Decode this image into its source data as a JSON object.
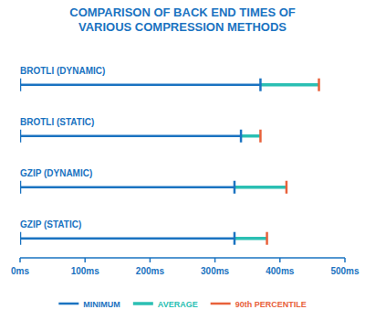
{
  "chart_data": {
    "type": "range",
    "title": "COMPARISON OF BACK END TIMES OF\nVARIOUS COMPRESSION METHODS",
    "categories": [
      "BROTLI (DYNAMIC)",
      "BROTLI (STATIC)",
      "GZIP (DYNAMIC)",
      "GZIP (STATIC)"
    ],
    "series": [
      {
        "name": "MINIMUM",
        "color": "#1a73c1",
        "values": [
          0,
          0,
          0,
          0
        ]
      },
      {
        "name": "AVERAGE",
        "color": "#2bbfb3",
        "values": [
          370,
          340,
          330,
          330
        ]
      },
      {
        "name": "90th PERCENTILE",
        "color": "#e8613a",
        "values": [
          460,
          370,
          410,
          380
        ]
      }
    ],
    "orientation": "horizontal",
    "color": "#1a73c1",
    "xlim": [
      0,
      500
    ],
    "xticks": [
      {
        "value": 0,
        "label": "0ms"
      },
      {
        "value": 100,
        "label": "100ms"
      },
      {
        "value": 200,
        "label": "200ms"
      },
      {
        "value": 300,
        "label": "300ms"
      },
      {
        "value": 400,
        "label": "400ms"
      },
      {
        "value": 500,
        "label": "500ms"
      }
    ],
    "legend": "bottom"
  }
}
